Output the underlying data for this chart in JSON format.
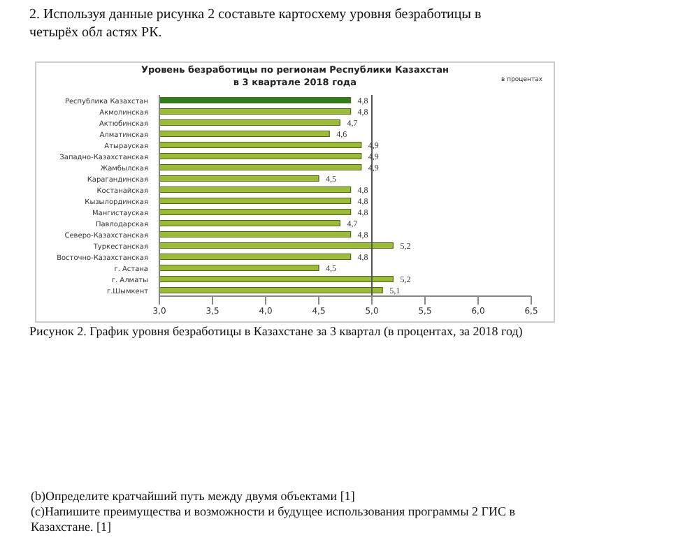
{
  "chart_data": {
    "type": "bar",
    "orientation": "horizontal",
    "title": "Уровень безработицы по регионам Республики Казахстан\nв 3 квартале 2018 года",
    "categories": [
      "Республика Казахстан",
      "Акмолинская",
      "Актюбинская",
      "Алматинская",
      "Атырауская",
      "Западно-Казахстанская",
      "Жамбылская",
      "Карагандинская",
      "Костанайская",
      "Кызылординская",
      "Мангистауская",
      "Павлодарская",
      "Северо-Казахстанская",
      "Туркестанская",
      "Восточно-Казахстанская",
      "г. Астана",
      "г. Алматы",
      "г.Шымкент"
    ],
    "values": [
      4.8,
      4.8,
      4.7,
      4.6,
      4.9,
      4.9,
      4.9,
      4.5,
      4.8,
      4.8,
      4.8,
      4.7,
      4.8,
      5.2,
      4.8,
      4.5,
      5.2,
      5.1
    ],
    "colors": [
      "#2e7d1e",
      "#9bbb3b",
      "#9bbb3b",
      "#9bbb3b",
      "#9bbb3b",
      "#9bbb3b",
      "#9bbb3b",
      "#9bbb3b",
      "#9bbb3b",
      "#9bbb3b",
      "#9bbb3b",
      "#9bbb3b",
      "#9bbb3b",
      "#9bbb3b",
      "#9bbb3b",
      "#9bbb3b",
      "#9bbb3b",
      "#9bbb3b"
    ],
    "value_labels": [
      "4,8",
      "4,8",
      "4,7",
      "4,6",
      "4,9",
      "4,9",
      "4,9",
      "4,5",
      "4,8",
      "4,8",
      "4,8",
      "4,7",
      "4,8",
      "5,2",
      "4,8",
      "4,5",
      "5,2",
      "5,1"
    ],
    "xlim": [
      3.0,
      6.5
    ],
    "xticks": [
      {
        "value": 3.0,
        "label": "3,0"
      },
      {
        "value": 3.5,
        "label": "3,5"
      },
      {
        "value": 4.0,
        "label": "4,0"
      },
      {
        "value": 4.5,
        "label": "4,5"
      },
      {
        "value": 5.0,
        "label": "5,0"
      },
      {
        "value": 5.5,
        "label": "5,5"
      },
      {
        "value": 6.0,
        "label": "6,0"
      },
      {
        "value": 6.5,
        "label": "6,5"
      }
    ],
    "ref_lines": [
      {
        "axis": "x",
        "value": 5.0,
        "color": "#555555"
      }
    ],
    "grid": false,
    "legend": false,
    "annotations": [
      "2. Используя данные рисунка 2 составьте картосхему уровня безработицы в четырёх обл астях РК.",
      "в процентах",
      "Рисунок 2. График уровня безработицы в Казахстане за 3 квартал (в процентах, за 2018 год)",
      "(b)Определите кратчайший путь между двумя объектами [1]",
      "(c)Напишите преимущества и возможности и будущее использования программы 2 ГИС в Казахстане. [1]"
    ]
  }
}
